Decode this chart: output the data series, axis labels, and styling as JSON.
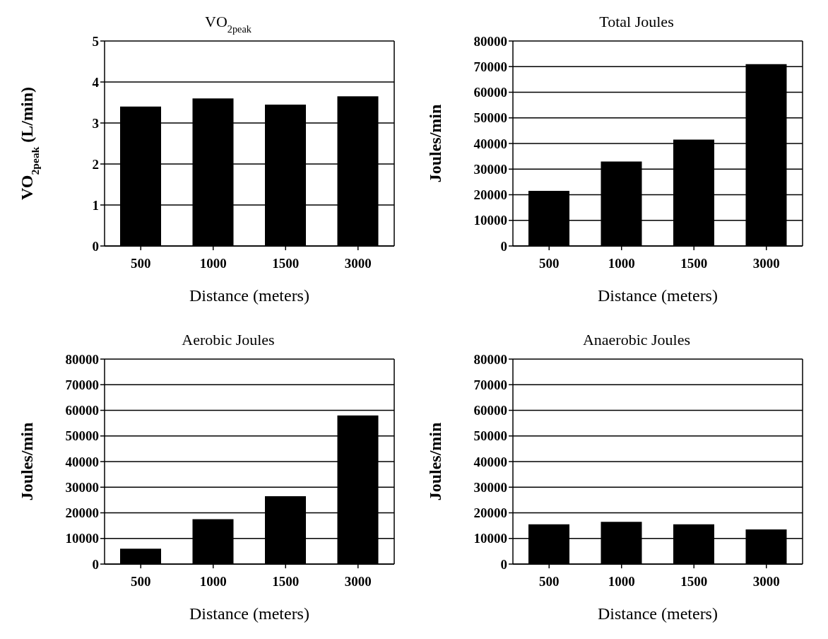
{
  "chart_data": [
    {
      "type": "bar",
      "title": "VO$_{2peak}$",
      "xlabel": "Distance (meters)",
      "ylabel": "VO$_{2peak}$ (L/min)",
      "categories": [
        "500",
        "1000",
        "1500",
        "3000"
      ],
      "values": [
        3.4,
        3.6,
        3.45,
        3.65
      ],
      "color": "#000000",
      "ylim": [
        0,
        5
      ],
      "yticks": [
        0,
        1,
        2,
        3,
        4,
        5
      ],
      "grid": "y"
    },
    {
      "type": "bar",
      "title": "Total Joules",
      "xlabel": "Distance (meters)",
      "ylabel": "Joules/min",
      "categories": [
        "500",
        "1000",
        "1500",
        "3000"
      ],
      "values": [
        21500,
        33000,
        41500,
        71000
      ],
      "color": "#000000",
      "ylim": [
        0,
        80000
      ],
      "yticks": [
        0,
        10000,
        20000,
        30000,
        40000,
        50000,
        60000,
        70000,
        80000
      ],
      "grid": "y"
    },
    {
      "type": "bar",
      "title": "Aerobic Joules",
      "xlabel": "Distance (meters)",
      "ylabel": "Joules/min",
      "categories": [
        "500",
        "1000",
        "1500",
        "3000"
      ],
      "values": [
        6000,
        17500,
        26500,
        58000
      ],
      "color": "#000000",
      "ylim": [
        0,
        80000
      ],
      "yticks": [
        0,
        10000,
        20000,
        30000,
        40000,
        50000,
        60000,
        70000,
        80000
      ],
      "grid": "y"
    },
    {
      "type": "bar",
      "title": "Anaerobic Joules",
      "xlabel": "Distance (meters)",
      "ylabel": "Joules/min",
      "categories": [
        "500",
        "1000",
        "1500",
        "3000"
      ],
      "values": [
        15500,
        16500,
        15500,
        13500
      ],
      "color": "#000000",
      "ylim": [
        0,
        80000
      ],
      "yticks": [
        0,
        10000,
        20000,
        30000,
        40000,
        50000,
        60000,
        70000,
        80000
      ],
      "grid": "y"
    }
  ]
}
